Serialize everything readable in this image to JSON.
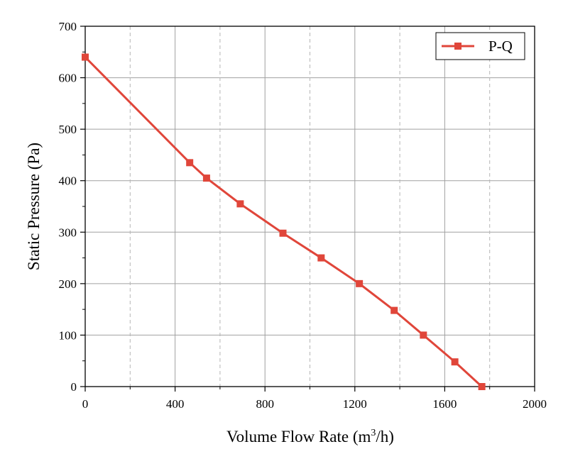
{
  "chart_data": {
    "type": "line",
    "title": "",
    "xlabel": "Volume Flow Rate (m",
    "xlabel_superscript": "3",
    "xlabel_suffix": "/h)",
    "ylabel": "Static Pressure (Pa)",
    "xlim": [
      0,
      2000
    ],
    "ylim": [
      0,
      700
    ],
    "x_major_ticks": [
      0,
      400,
      800,
      1200,
      1600,
      2000
    ],
    "x_major_tick_labels": [
      "0",
      "400",
      "800",
      "1200",
      "1600",
      "2000"
    ],
    "x_minor_gridlines": [
      200,
      600,
      1000,
      1400,
      1800
    ],
    "y_major_ticks": [
      0,
      100,
      200,
      300,
      400,
      500,
      600,
      700
    ],
    "y_major_tick_labels": [
      "0",
      "100",
      "200",
      "300",
      "400",
      "500",
      "600",
      "700"
    ],
    "grid": true,
    "legend_position": "top-right",
    "series": [
      {
        "name": "P-Q",
        "color": "#e0463a",
        "marker": "square",
        "x": [
          0,
          465,
          540,
          690,
          880,
          1050,
          1220,
          1375,
          1505,
          1645,
          1765
        ],
        "y": [
          640,
          435,
          405,
          355,
          298,
          250,
          200,
          148,
          100,
          48,
          0
        ]
      }
    ]
  }
}
